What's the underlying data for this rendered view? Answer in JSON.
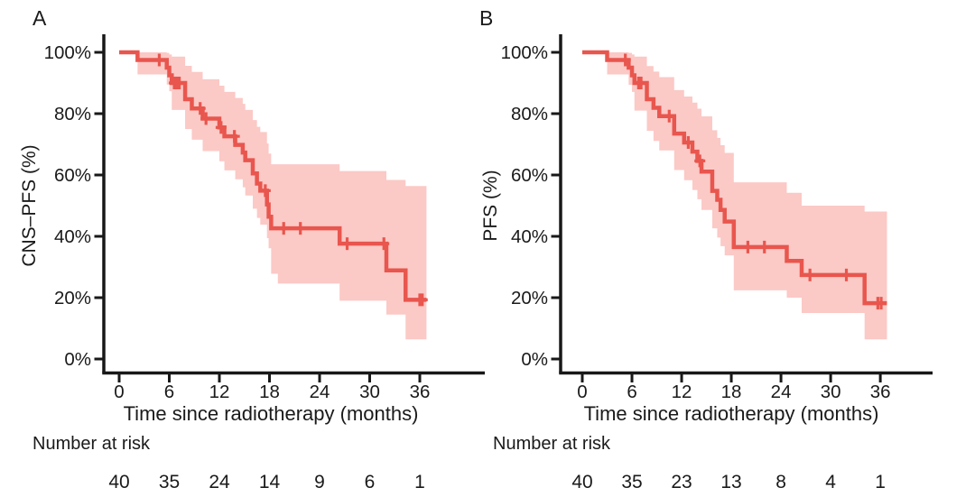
{
  "figure": {
    "background": "#ffffff",
    "line_color": "#e8564e",
    "band_color": "#fbc9c6",
    "axis_color": "#181818",
    "text_color": "#1a1a1a"
  },
  "chart_data": [
    {
      "type": "line",
      "subtype": "kaplan-meier-step-with-ci-band",
      "panel_label": "A",
      "ylabel": "CNS–PFS (%)",
      "xlabel": "Time since radiotherapy (months)",
      "legend": "none",
      "grid": "off",
      "xlim": [
        0,
        42
      ],
      "ylim": [
        0,
        100
      ],
      "xticks": [
        0,
        6,
        12,
        18,
        24,
        30,
        36
      ],
      "xtick_labels": [
        "0",
        "6",
        "12",
        "18",
        "24",
        "30",
        "36"
      ],
      "yticks": [
        0,
        20,
        40,
        60,
        80,
        100
      ],
      "ytick_labels": [
        "0%",
        "20%",
        "40%",
        "60%",
        "80%",
        "100%"
      ],
      "end_time": 36.8,
      "survival_steps": [
        [
          0,
          100
        ],
        [
          2.2,
          97.5
        ],
        [
          5.7,
          95
        ],
        [
          6.0,
          92.5
        ],
        [
          6.3,
          90
        ],
        [
          7.9,
          84.7
        ],
        [
          8.7,
          81.7
        ],
        [
          10.0,
          78.4
        ],
        [
          12.0,
          75.5
        ],
        [
          12.6,
          72.6
        ],
        [
          13.9,
          69.8
        ],
        [
          14.8,
          67.3
        ],
        [
          15.1,
          64.8
        ],
        [
          16.0,
          60.5
        ],
        [
          16.5,
          57.2
        ],
        [
          16.9,
          54.9
        ],
        [
          17.7,
          50.4
        ],
        [
          17.9,
          46.4
        ],
        [
          18.2,
          42.6
        ],
        [
          26.4,
          37.6
        ],
        [
          32.0,
          28.9
        ],
        [
          34.3,
          19.3
        ]
      ],
      "censor_marks": [
        [
          4.8,
          97.5
        ],
        [
          6.6,
          90
        ],
        [
          6.9,
          90
        ],
        [
          7.2,
          90
        ],
        [
          9.7,
          81.7
        ],
        [
          10.4,
          78.4
        ],
        [
          12.2,
          75.5
        ],
        [
          13.8,
          72.6
        ],
        [
          17.5,
          54.9
        ],
        [
          19.7,
          42.6
        ],
        [
          21.7,
          42.6
        ],
        [
          27.3,
          37.6
        ],
        [
          31.7,
          37.6
        ],
        [
          36.0,
          19.3
        ],
        [
          36.3,
          19.3
        ]
      ],
      "ci_steps": [
        [
          2.2,
          100,
          92.8
        ],
        [
          5.7,
          99.8,
          89.5
        ],
        [
          6.0,
          99.3,
          87.3
        ],
        [
          6.3,
          98.6,
          81.2
        ],
        [
          7.9,
          95.6,
          75.0
        ],
        [
          8.7,
          93.6,
          71.5
        ],
        [
          10.0,
          91.2,
          67.8
        ],
        [
          12.0,
          89.1,
          64.5
        ],
        [
          12.6,
          87.1,
          61.5
        ],
        [
          13.9,
          85.1,
          58.6
        ],
        [
          14.8,
          83.2,
          56.0
        ],
        [
          15.1,
          81.2,
          53.3
        ],
        [
          16.0,
          77.9,
          49.0
        ],
        [
          16.5,
          75.7,
          46.0
        ],
        [
          16.9,
          74.0,
          43.8
        ],
        [
          17.7,
          70.3,
          39.4
        ],
        [
          17.9,
          67.0,
          36.1
        ],
        [
          18.2,
          63.5,
          27.8
        ],
        [
          19.0,
          63.5,
          24.6
        ],
        [
          26.4,
          61.3,
          19.0
        ],
        [
          32.0,
          58.4,
          14.5
        ],
        [
          34.3,
          56.4,
          6.4
        ]
      ],
      "at_risk": {
        "label": "Number at risk",
        "times": [
          0,
          6,
          12,
          18,
          24,
          30,
          36
        ],
        "counts": [
          "40",
          "35",
          "24",
          "14",
          "9",
          "6",
          "1"
        ]
      }
    },
    {
      "type": "line",
      "subtype": "kaplan-meier-step-with-ci-band",
      "panel_label": "B",
      "ylabel": "PFS (%)",
      "xlabel": "Time since radiotherapy (months)",
      "legend": "none",
      "grid": "off",
      "xlim": [
        0,
        42
      ],
      "ylim": [
        0,
        100
      ],
      "xticks": [
        0,
        6,
        12,
        18,
        24,
        30,
        36
      ],
      "xtick_labels": [
        "0",
        "6",
        "12",
        "18",
        "24",
        "30",
        "36"
      ],
      "yticks": [
        0,
        20,
        40,
        60,
        80,
        100
      ],
      "ytick_labels": [
        "0%",
        "20%",
        "40%",
        "60%",
        "80%",
        "100%"
      ],
      "end_time": 36.8,
      "survival_steps": [
        [
          0,
          100
        ],
        [
          3.0,
          97.5
        ],
        [
          5.6,
          95
        ],
        [
          6.0,
          92.5
        ],
        [
          6.3,
          90
        ],
        [
          7.8,
          84.7
        ],
        [
          8.6,
          81.9
        ],
        [
          9.3,
          79.2
        ],
        [
          11.1,
          73.5
        ],
        [
          12.3,
          70.6
        ],
        [
          13.3,
          67.6
        ],
        [
          13.9,
          64.6
        ],
        [
          14.4,
          61.1
        ],
        [
          15.7,
          54.8
        ],
        [
          16.3,
          51.9
        ],
        [
          16.7,
          48.6
        ],
        [
          17.2,
          44.8
        ],
        [
          18.3,
          36.5
        ],
        [
          24.7,
          32.0
        ],
        [
          26.5,
          27.4
        ],
        [
          34.1,
          18.2
        ]
      ],
      "censor_marks": [
        [
          5.2,
          97.5
        ],
        [
          6.8,
          90
        ],
        [
          7.1,
          90
        ],
        [
          10.5,
          79.2
        ],
        [
          12.8,
          70.6
        ],
        [
          14.2,
          64.6
        ],
        [
          20.0,
          36.5
        ],
        [
          22.0,
          36.5
        ],
        [
          27.5,
          27.4
        ],
        [
          31.9,
          27.4
        ],
        [
          35.7,
          18.2
        ],
        [
          36.1,
          18.2
        ]
      ],
      "ci_steps": [
        [
          3.0,
          100,
          92.8
        ],
        [
          5.6,
          99.8,
          89.4
        ],
        [
          6.0,
          99.3,
          87.1
        ],
        [
          6.3,
          98.6,
          81.0
        ],
        [
          7.8,
          95.5,
          74.4
        ],
        [
          8.6,
          93.7,
          71.1
        ],
        [
          9.3,
          91.9,
          68.0
        ],
        [
          11.1,
          87.7,
          61.6
        ],
        [
          12.3,
          85.6,
          58.3
        ],
        [
          13.3,
          83.6,
          55.1
        ],
        [
          13.9,
          81.6,
          52.1
        ],
        [
          14.4,
          79.1,
          48.6
        ],
        [
          15.7,
          74.6,
          42.6
        ],
        [
          16.3,
          72.1,
          39.6
        ],
        [
          16.7,
          69.7,
          36.8
        ],
        [
          17.2,
          67.2,
          33.8
        ],
        [
          18.3,
          57.6,
          22.4
        ],
        [
          24.7,
          54.2,
          20.0
        ],
        [
          26.5,
          50.0,
          15.0
        ],
        [
          34.1,
          48.1,
          6.4
        ]
      ],
      "at_risk": {
        "label": "Number at risk",
        "times": [
          0,
          6,
          12,
          18,
          24,
          30,
          36
        ],
        "counts": [
          "40",
          "35",
          "23",
          "13",
          "8",
          "4",
          "1"
        ]
      }
    }
  ]
}
